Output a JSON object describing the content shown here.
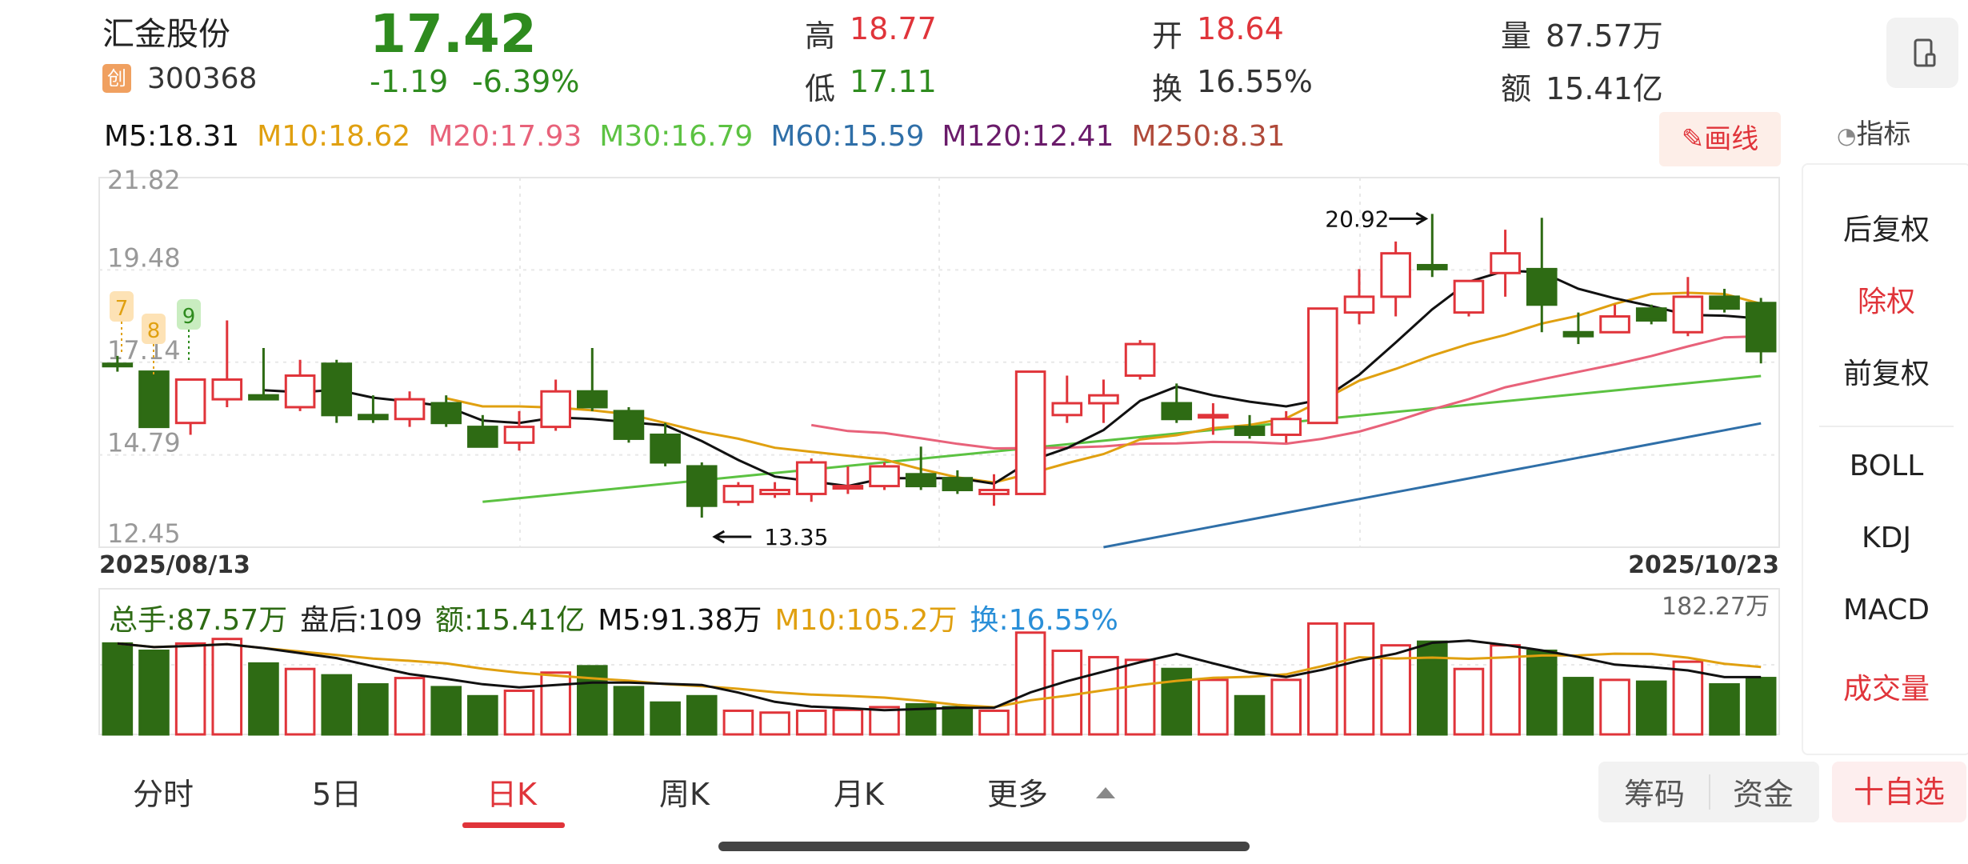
{
  "stock": {
    "name": "汇金股份",
    "board_badge": "创",
    "code": "300368",
    "price": "17.42",
    "change": "-1.19",
    "change_pct": "-6.39%"
  },
  "quote": {
    "high_label": "高",
    "high": "18.77",
    "low_label": "低",
    "low": "17.11",
    "open_label": "开",
    "open": "18.64",
    "turnover_label": "换",
    "turnover": "16.55%",
    "volume_label": "量",
    "volume": "87.57万",
    "amount_label": "额",
    "amount": "15.41亿"
  },
  "ma_legend": [
    {
      "text": "M5:18.31",
      "color": "#111111"
    },
    {
      "text": "M10:18.62",
      "color": "#e0a010"
    },
    {
      "text": "M20:17.93",
      "color": "#e8627a"
    },
    {
      "text": "M30:16.79",
      "color": "#5cc242"
    },
    {
      "text": "M60:15.59",
      "color": "#2f6fa8"
    },
    {
      "text": "M120:12.41",
      "color": "#6a1b6a"
    },
    {
      "text": "M250:8.31",
      "color": "#b04a3a"
    }
  ],
  "draw_button": "画线",
  "indicator_label": "指标",
  "side_menu": {
    "items": [
      {
        "label": "后复权",
        "active": false
      },
      {
        "label": "除权",
        "active": true
      },
      {
        "label": "前复权",
        "active": false
      },
      {
        "label": "BOLL",
        "active": false
      },
      {
        "label": "KDJ",
        "active": false
      },
      {
        "label": "MACD",
        "active": false
      },
      {
        "label": "成交量",
        "active": true
      }
    ]
  },
  "vol_legend": [
    {
      "text": "总手:87.57万",
      "color": "#2e6b14"
    },
    {
      "text": "盘后:109",
      "color": "#222222"
    },
    {
      "text": "额:15.41亿",
      "color": "#2e6b14"
    },
    {
      "text": "M5:91.38万",
      "color": "#111111"
    },
    {
      "text": "M10:105.2万",
      "color": "#e0a010"
    },
    {
      "text": "换:16.55%",
      "color": "#2a8fd8"
    }
  ],
  "tabs": [
    {
      "label": "分时",
      "active": false
    },
    {
      "label": "5日",
      "active": false
    },
    {
      "label": "日K",
      "active": true
    },
    {
      "label": "周K",
      "active": false
    },
    {
      "label": "月K",
      "active": false
    },
    {
      "label": "更多",
      "active": false
    }
  ],
  "bottom_buttons": {
    "chips": "筹码",
    "funds": "资金",
    "add_watch": "十自选"
  },
  "colors": {
    "up": "#e0343a",
    "down": "#2e6b14",
    "accent": "#e0343a"
  },
  "chart_data": {
    "type": "candlestick",
    "price_axis": {
      "ticks": [
        "21.82",
        "19.48",
        "17.14",
        "14.79",
        "12.45"
      ],
      "ylim": [
        12.45,
        21.82
      ]
    },
    "date_range": [
      "2025/08/13",
      "2025/10/23"
    ],
    "annotations": {
      "max": "20.92",
      "min": "13.35"
    },
    "markers": [
      "7",
      "8",
      "9"
    ],
    "candles": [
      [
        17.1,
        17.05,
        17.3,
        16.9
      ],
      [
        16.9,
        15.5,
        16.9,
        15.5
      ],
      [
        15.6,
        16.7,
        16.7,
        15.3
      ],
      [
        16.2,
        16.7,
        18.2,
        16.0
      ],
      [
        16.3,
        16.2,
        17.5,
        16.2
      ],
      [
        16.0,
        16.8,
        17.2,
        15.9
      ],
      [
        17.1,
        15.8,
        17.2,
        15.6
      ],
      [
        15.8,
        15.7,
        16.3,
        15.6
      ],
      [
        15.7,
        16.2,
        16.4,
        15.5
      ],
      [
        16.1,
        15.6,
        16.3,
        15.5
      ],
      [
        15.5,
        15.0,
        15.8,
        15.0
      ],
      [
        15.1,
        15.5,
        15.9,
        14.9
      ],
      [
        15.5,
        16.4,
        16.7,
        15.4
      ],
      [
        16.4,
        16.0,
        17.5,
        15.9
      ],
      [
        15.9,
        15.2,
        16.0,
        15.1
      ],
      [
        15.3,
        14.6,
        15.6,
        14.5
      ],
      [
        14.5,
        13.5,
        14.6,
        13.2
      ],
      [
        13.6,
        14.0,
        14.1,
        13.5
      ],
      [
        13.8,
        13.9,
        14.1,
        13.7
      ],
      [
        13.8,
        14.6,
        14.7,
        13.6
      ],
      [
        14.0,
        14.0,
        14.5,
        13.8
      ],
      [
        14.0,
        14.5,
        14.6,
        13.9
      ],
      [
        14.3,
        14.0,
        15.0,
        13.9
      ],
      [
        14.2,
        13.9,
        14.4,
        13.8
      ],
      [
        13.8,
        13.9,
        14.3,
        13.5
      ],
      [
        13.8,
        16.9,
        16.9,
        13.8
      ],
      [
        15.8,
        16.1,
        16.8,
        15.6
      ],
      [
        16.1,
        16.3,
        16.7,
        15.6
      ],
      [
        16.8,
        17.6,
        17.7,
        16.7
      ],
      [
        16.1,
        15.7,
        16.6,
        15.6
      ],
      [
        15.8,
        15.8,
        16.1,
        15.3
      ],
      [
        15.5,
        15.3,
        15.8,
        15.2
      ],
      [
        15.3,
        15.7,
        15.9,
        15.1
      ],
      [
        15.6,
        18.5,
        18.5,
        15.6
      ],
      [
        18.4,
        18.8,
        19.5,
        18.1
      ],
      [
        18.8,
        19.9,
        20.2,
        18.3
      ],
      [
        19.6,
        19.5,
        20.9,
        19.3
      ],
      [
        18.4,
        19.2,
        19.2,
        18.3
      ],
      [
        19.4,
        19.9,
        20.5,
        18.8
      ],
      [
        19.5,
        18.6,
        20.8,
        17.9
      ],
      [
        17.9,
        17.8,
        18.4,
        17.6
      ],
      [
        17.9,
        18.3,
        18.6,
        17.9
      ],
      [
        18.5,
        18.2,
        18.6,
        18.1
      ],
      [
        17.9,
        18.8,
        19.3,
        17.8
      ],
      [
        18.8,
        18.5,
        19.0,
        18.4
      ],
      [
        18.64,
        17.42,
        18.77,
        17.11
      ]
    ],
    "volume_axis_max": "182.27万",
    "volumes": [
      1.0,
      0.92,
      1.0,
      1.05,
      0.78,
      0.72,
      0.65,
      0.55,
      0.62,
      0.52,
      0.42,
      0.48,
      0.68,
      0.75,
      0.52,
      0.35,
      0.42,
      0.26,
      0.24,
      0.26,
      0.27,
      0.3,
      0.33,
      0.3,
      0.26,
      1.12,
      0.92,
      0.85,
      0.82,
      0.72,
      0.6,
      0.42,
      0.6,
      1.22,
      1.22,
      0.98,
      1.02,
      0.72,
      0.98,
      0.92,
      0.62,
      0.6,
      0.58,
      0.8,
      0.55,
      0.62
    ]
  }
}
